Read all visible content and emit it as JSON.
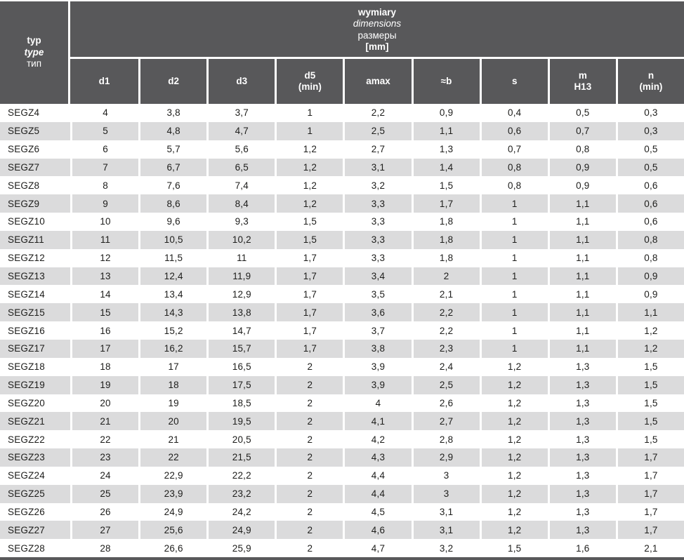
{
  "colors": {
    "header_bg": "#58585a",
    "header_text": "#ffffff",
    "row_alt": "#dbdbdc",
    "row_white": "#ffffff",
    "text": "#1d1d1b",
    "separator": "#ffffff"
  },
  "header": {
    "type_column": {
      "line1": "typ",
      "line2": "type",
      "line3": "тип"
    },
    "span_title": {
      "line1": "wymiary",
      "line2": "dimensions",
      "line3": "размеры",
      "line4": "[mm]"
    },
    "columns": [
      {
        "key": "d1",
        "label": "d1"
      },
      {
        "key": "d2",
        "label": "d2"
      },
      {
        "key": "d3",
        "label": "d3"
      },
      {
        "key": "d5_min",
        "label": "d5",
        "sub": "(min)"
      },
      {
        "key": "amax",
        "label": "amax"
      },
      {
        "key": "approx_b",
        "label": "≈b"
      },
      {
        "key": "s",
        "label": "s"
      },
      {
        "key": "m_h13",
        "label": "m",
        "sub": "H13"
      },
      {
        "key": "n_min",
        "label": "n",
        "sub": "(min)"
      }
    ]
  },
  "rows": [
    {
      "type": "SEGZ4",
      "values": [
        "4",
        "3,8",
        "3,7",
        "1",
        "2,2",
        "0,9",
        "0,4",
        "0,5",
        "0,3"
      ]
    },
    {
      "type": "SEGZ5",
      "values": [
        "5",
        "4,8",
        "4,7",
        "1",
        "2,5",
        "1,1",
        "0,6",
        "0,7",
        "0,3"
      ]
    },
    {
      "type": "SEGZ6",
      "values": [
        "6",
        "5,7",
        "5,6",
        "1,2",
        "2,7",
        "1,3",
        "0,7",
        "0,8",
        "0,5"
      ]
    },
    {
      "type": "SEGZ7",
      "values": [
        "7",
        "6,7",
        "6,5",
        "1,2",
        "3,1",
        "1,4",
        "0,8",
        "0,9",
        "0,5"
      ]
    },
    {
      "type": "SEGZ8",
      "values": [
        "8",
        "7,6",
        "7,4",
        "1,2",
        "3,2",
        "1,5",
        "0,8",
        "0,9",
        "0,6"
      ]
    },
    {
      "type": "SEGZ9",
      "values": [
        "9",
        "8,6",
        "8,4",
        "1,2",
        "3,3",
        "1,7",
        "1",
        "1,1",
        "0,6"
      ]
    },
    {
      "type": "SEGZ10",
      "values": [
        "10",
        "9,6",
        "9,3",
        "1,5",
        "3,3",
        "1,8",
        "1",
        "1,1",
        "0,6"
      ]
    },
    {
      "type": "SEGZ11",
      "values": [
        "11",
        "10,5",
        "10,2",
        "1,5",
        "3,3",
        "1,8",
        "1",
        "1,1",
        "0,8"
      ]
    },
    {
      "type": "SEGZ12",
      "values": [
        "12",
        "11,5",
        "11",
        "1,7",
        "3,3",
        "1,8",
        "1",
        "1,1",
        "0,8"
      ]
    },
    {
      "type": "SEGZ13",
      "values": [
        "13",
        "12,4",
        "11,9",
        "1,7",
        "3,4",
        "2",
        "1",
        "1,1",
        "0,9"
      ]
    },
    {
      "type": "SEGZ14",
      "values": [
        "14",
        "13,4",
        "12,9",
        "1,7",
        "3,5",
        "2,1",
        "1",
        "1,1",
        "0,9"
      ]
    },
    {
      "type": "SEGZ15",
      "values": [
        "15",
        "14,3",
        "13,8",
        "1,7",
        "3,6",
        "2,2",
        "1",
        "1,1",
        "1,1"
      ]
    },
    {
      "type": "SEGZ16",
      "values": [
        "16",
        "15,2",
        "14,7",
        "1,7",
        "3,7",
        "2,2",
        "1",
        "1,1",
        "1,2"
      ]
    },
    {
      "type": "SEGZ17",
      "values": [
        "17",
        "16,2",
        "15,7",
        "1,7",
        "3,8",
        "2,3",
        "1",
        "1,1",
        "1,2"
      ]
    },
    {
      "type": "SEGZ18",
      "values": [
        "18",
        "17",
        "16,5",
        "2",
        "3,9",
        "2,4",
        "1,2",
        "1,3",
        "1,5"
      ]
    },
    {
      "type": "SEGZ19",
      "values": [
        "19",
        "18",
        "17,5",
        "2",
        "3,9",
        "2,5",
        "1,2",
        "1,3",
        "1,5"
      ]
    },
    {
      "type": "SEGZ20",
      "values": [
        "20",
        "19",
        "18,5",
        "2",
        "4",
        "2,6",
        "1,2",
        "1,3",
        "1,5"
      ]
    },
    {
      "type": "SEGZ21",
      "values": [
        "21",
        "20",
        "19,5",
        "2",
        "4,1",
        "2,7",
        "1,2",
        "1,3",
        "1,5"
      ]
    },
    {
      "type": "SEGZ22",
      "values": [
        "22",
        "21",
        "20,5",
        "2",
        "4,2",
        "2,8",
        "1,2",
        "1,3",
        "1,5"
      ]
    },
    {
      "type": "SEGZ23",
      "values": [
        "23",
        "22",
        "21,5",
        "2",
        "4,3",
        "2,9",
        "1,2",
        "1,3",
        "1,7"
      ]
    },
    {
      "type": "SEGZ24",
      "values": [
        "24",
        "22,9",
        "22,2",
        "2",
        "4,4",
        "3",
        "1,2",
        "1,3",
        "1,7"
      ]
    },
    {
      "type": "SEGZ25",
      "values": [
        "25",
        "23,9",
        "23,2",
        "2",
        "4,4",
        "3",
        "1,2",
        "1,3",
        "1,7"
      ]
    },
    {
      "type": "SEGZ26",
      "values": [
        "26",
        "24,9",
        "24,2",
        "2",
        "4,5",
        "3,1",
        "1,2",
        "1,3",
        "1,7"
      ]
    },
    {
      "type": "SEGZ27",
      "values": [
        "27",
        "25,6",
        "24,9",
        "2",
        "4,6",
        "3,1",
        "1,2",
        "1,3",
        "1,7"
      ]
    },
    {
      "type": "SEGZ28",
      "values": [
        "28",
        "26,6",
        "25,9",
        "2",
        "4,7",
        "3,2",
        "1,5",
        "1,6",
        "2,1"
      ]
    }
  ]
}
